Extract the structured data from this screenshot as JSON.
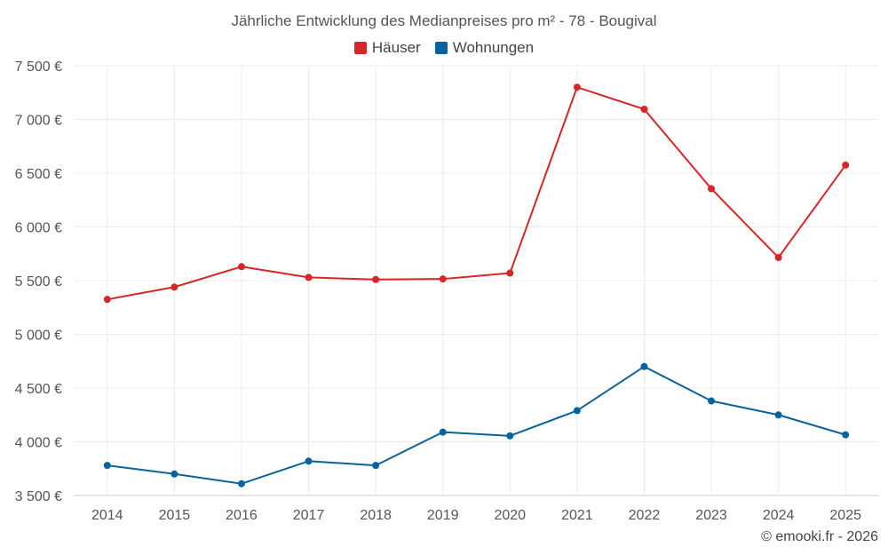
{
  "footer": "© emooki.fr - 2026",
  "chart_data": {
    "type": "line",
    "title": "Jährliche Entwicklung des Medianpreises pro m² - 78 - Bougival",
    "categories": [
      "2014",
      "2015",
      "2016",
      "2017",
      "2018",
      "2019",
      "2020",
      "2021",
      "2022",
      "2023",
      "2024",
      "2025"
    ],
    "series": [
      {
        "name": "Häuser",
        "color": "#d62728",
        "values": [
          5325,
          5440,
          5630,
          5530,
          5510,
          5515,
          5570,
          7300,
          7095,
          6355,
          5715,
          6575
        ]
      },
      {
        "name": "Wohnungen",
        "color": "#08639c",
        "values": [
          3780,
          3700,
          3610,
          3820,
          3780,
          4090,
          4055,
          4290,
          4700,
          4380,
          4250,
          4065
        ]
      }
    ],
    "ylim": [
      3500,
      7500
    ],
    "yticks": [
      3500,
      4000,
      4500,
      5000,
      5500,
      6000,
      6500,
      7000,
      7500
    ],
    "ytick_labels": [
      "3 500 €",
      "4 000 €",
      "4 500 €",
      "5 000 €",
      "5 500 €",
      "6 000 €",
      "6 500 €",
      "7 000 €",
      "7 500 €"
    ],
    "xlabel": "",
    "ylabel": "",
    "grid": true,
    "legend": "top-center"
  }
}
